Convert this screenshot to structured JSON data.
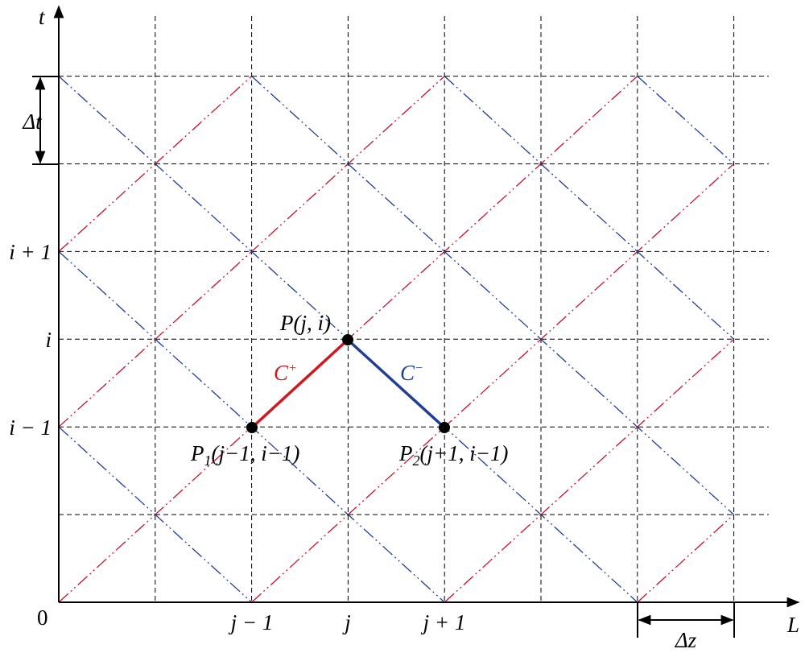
{
  "axes": {
    "x_label": "L",
    "y_label": "t",
    "origin": "0"
  },
  "y_ticks": [
    "i − 1",
    "i",
    "i + 1"
  ],
  "x_ticks": [
    "j − 1",
    "j",
    "j + 1"
  ],
  "steps": {
    "dt": "Δt",
    "dz": "Δz"
  },
  "points": {
    "p": "P(j, i)",
    "p1": {
      "base": "P",
      "sub": "1",
      "coords": "(j−1, i−1)"
    },
    "p2": {
      "base": "P",
      "sub": "2",
      "coords": "(j+1, i−1)"
    }
  },
  "characteristics": {
    "c_plus": {
      "base": "C",
      "sup": "+"
    },
    "c_minus": {
      "base": "C",
      "sup": "−"
    }
  }
}
